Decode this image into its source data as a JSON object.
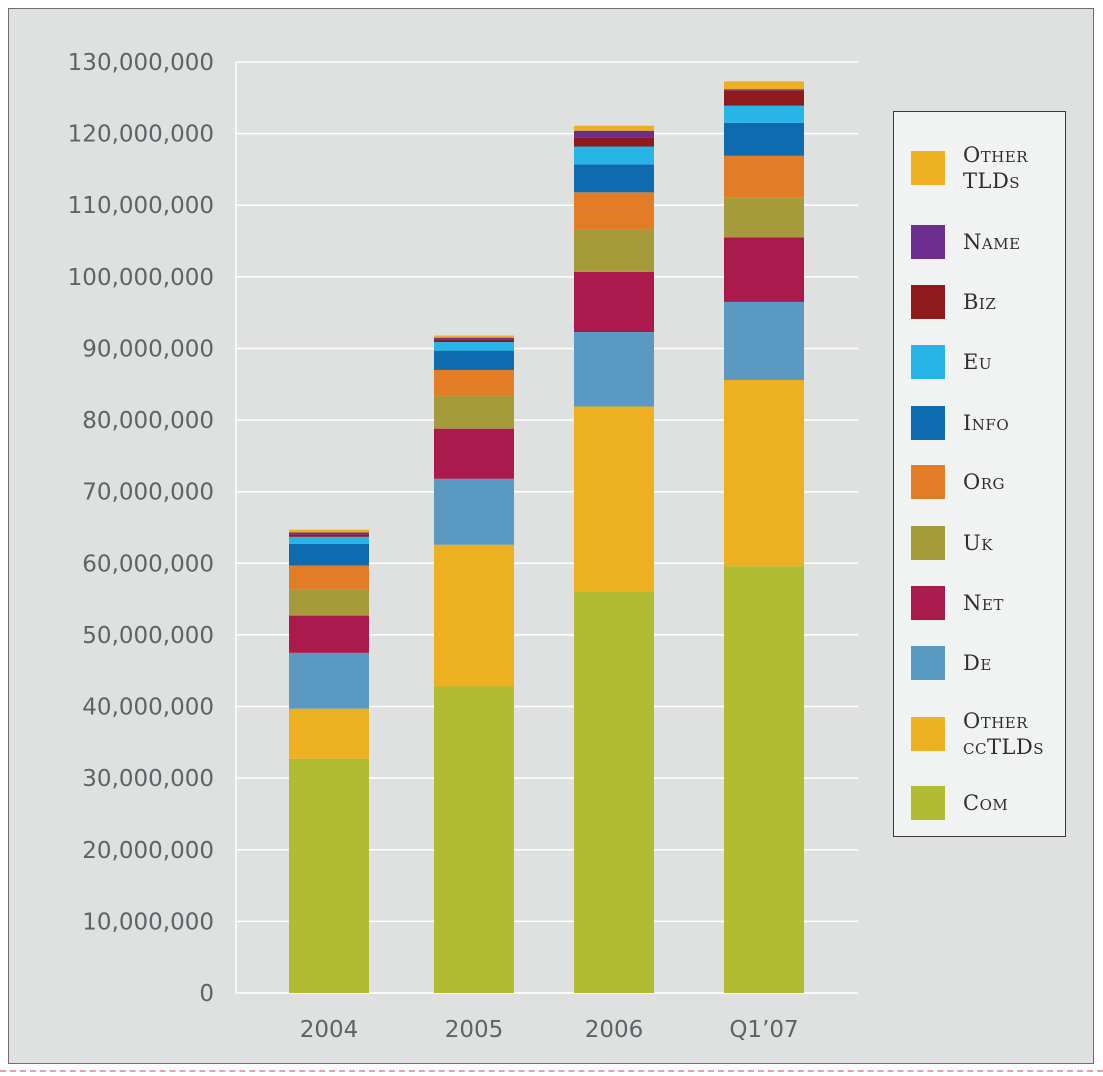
{
  "chart_data": {
    "type": "bar",
    "stacked": true,
    "categories": [
      "2004",
      "2005",
      "2006",
      "Q1’07"
    ],
    "ylim": [
      0,
      130000000
    ],
    "y_ticks": [
      "0",
      "10,000,000",
      "20,000,000",
      "30,000,000",
      "40,000,000",
      "50,000,000",
      "60,000,000",
      "70,000,000",
      "80,000,000",
      "90,000,000",
      "100,000,000",
      "110,000,000",
      "120,000,000",
      "130,000,000"
    ],
    "grid": true,
    "legend_position": "right",
    "series": [
      {
        "name": "Com",
        "color": "#b2bc33",
        "values": [
          32700000,
          42800000,
          56000000,
          59600000
        ]
      },
      {
        "name": "Other ccTLDs",
        "color": "#ecb021",
        "values": [
          7000000,
          19800000,
          25900000,
          26000000
        ]
      },
      {
        "name": "De",
        "color": "#5999c2",
        "values": [
          7800000,
          9200000,
          10400000,
          10900000
        ]
      },
      {
        "name": "Net",
        "color": "#aa1a4c",
        "values": [
          5200000,
          7000000,
          8400000,
          9000000
        ]
      },
      {
        "name": "Uk",
        "color": "#a69b3a",
        "values": [
          3700000,
          4600000,
          5900000,
          5600000
        ]
      },
      {
        "name": "Org",
        "color": "#e27c26",
        "values": [
          3300000,
          3600000,
          5200000,
          5800000
        ]
      },
      {
        "name": "Info",
        "color": "#0f6bb0",
        "values": [
          3000000,
          2700000,
          3900000,
          4600000
        ]
      },
      {
        "name": "Eu",
        "color": "#27b5e7",
        "values": [
          1000000,
          1200000,
          2500000,
          2400000
        ]
      },
      {
        "name": "Biz",
        "color": "#8f1a1c",
        "values": [
          300000,
          300000,
          1200000,
          2100000
        ]
      },
      {
        "name": "Name",
        "color": "#6b2e8e",
        "values": [
          300000,
          300000,
          1000000,
          200000
        ]
      },
      {
        "name": "Other TLDs",
        "color": "#ecb021",
        "values": [
          400000,
          300000,
          700000,
          1100000
        ]
      }
    ],
    "legend": [
      {
        "label": "Other TLDs",
        "color": "#ecb021"
      },
      {
        "label": "Name",
        "color": "#6b2e8e"
      },
      {
        "label": "Biz",
        "color": "#8f1a1c"
      },
      {
        "label": "Eu",
        "color": "#27b5e7"
      },
      {
        "label": "Info",
        "color": "#0f6bb0"
      },
      {
        "label": "Org",
        "color": "#e27c26"
      },
      {
        "label": "Uk",
        "color": "#a69b3a"
      },
      {
        "label": "Net",
        "color": "#aa1a4c"
      },
      {
        "label": "De",
        "color": "#5999c2"
      },
      {
        "label": "Other ccTLDs",
        "color": "#ecb021"
      },
      {
        "label": "Com",
        "color": "#b2bc33"
      }
    ]
  }
}
